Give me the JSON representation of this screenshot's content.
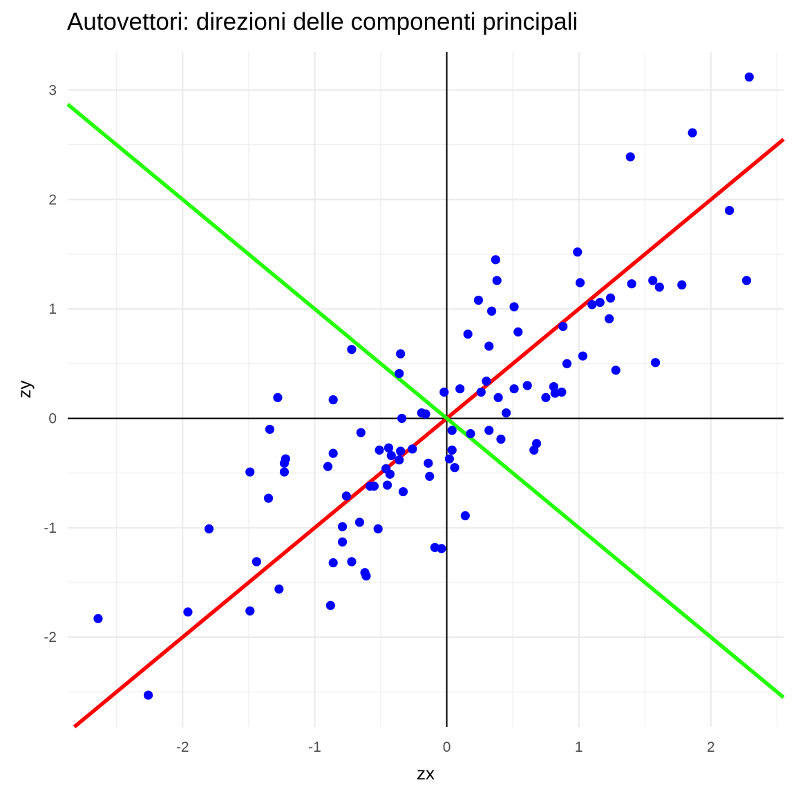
{
  "chart_data": {
    "type": "scatter",
    "title": "Autovettori: direzioni delle componenti principali",
    "xlabel": "zx",
    "ylabel": "zy",
    "xlim": [
      -2.87,
      2.55
    ],
    "ylim": [
      -2.82,
      3.35
    ],
    "xticks": [
      -2,
      -1,
      0,
      1,
      2
    ],
    "yticks": [
      -2,
      -1,
      0,
      1,
      2,
      3
    ],
    "xtick_labels": [
      "-2",
      "-1",
      "0",
      "1",
      "2"
    ],
    "ytick_labels": [
      "-2",
      "-1",
      "0",
      "1",
      "2",
      "3"
    ],
    "grid": true,
    "reference_lines": [
      {
        "orientation": "vertical",
        "value": 0,
        "color": "#000000"
      },
      {
        "orientation": "horizontal",
        "value": 0,
        "color": "#000000"
      }
    ],
    "direction_lines": [
      {
        "slope": 1,
        "intercept": 0,
        "color": "#ff0000"
      },
      {
        "slope": -1,
        "intercept": 0,
        "color": "#22ff00"
      }
    ],
    "point_color": "#0000ff",
    "points": [
      [
        2.29,
        3.12
      ],
      [
        1.86,
        2.61
      ],
      [
        1.39,
        2.39
      ],
      [
        2.14,
        1.9
      ],
      [
        2.27,
        1.26
      ],
      [
        1.78,
        1.22
      ],
      [
        1.56,
        1.26
      ],
      [
        1.61,
        1.2
      ],
      [
        1.4,
        1.23
      ],
      [
        0.99,
        1.52
      ],
      [
        1.01,
        1.24
      ],
      [
        1.58,
        0.51
      ],
      [
        1.28,
        0.44
      ],
      [
        1.24,
        1.1
      ],
      [
        1.23,
        0.91
      ],
      [
        1.16,
        1.06
      ],
      [
        1.1,
        1.04
      ],
      [
        1.03,
        0.57
      ],
      [
        0.91,
        0.5
      ],
      [
        0.88,
        0.84
      ],
      [
        0.87,
        0.24
      ],
      [
        0.82,
        0.23
      ],
      [
        0.81,
        0.29
      ],
      [
        0.75,
        0.19
      ],
      [
        0.61,
        0.3
      ],
      [
        0.37,
        1.45
      ],
      [
        0.38,
        1.26
      ],
      [
        0.51,
        1.02
      ],
      [
        0.34,
        0.98
      ],
      [
        0.24,
        1.08
      ],
      [
        0.54,
        0.79
      ],
      [
        0.16,
        0.77
      ],
      [
        0.32,
        0.66
      ],
      [
        0.51,
        0.27
      ],
      [
        0.3,
        0.34
      ],
      [
        0.26,
        0.24
      ],
      [
        0.39,
        0.19
      ],
      [
        0.45,
        0.05
      ],
      [
        0.1,
        0.27
      ],
      [
        -0.02,
        0.24
      ],
      [
        0.68,
        -0.23
      ],
      [
        0.66,
        -0.29
      ],
      [
        0.41,
        -0.19
      ],
      [
        0.32,
        -0.11
      ],
      [
        0.18,
        -0.14
      ],
      [
        0.04,
        -0.11
      ],
      [
        0.04,
        -0.29
      ],
      [
        0.02,
        -0.37
      ],
      [
        0.06,
        -0.45
      ],
      [
        0.14,
        -0.89
      ],
      [
        -0.72,
        0.63
      ],
      [
        -0.35,
        0.59
      ],
      [
        -0.36,
        0.41
      ],
      [
        -0.86,
        0.17
      ],
      [
        -1.28,
        0.19
      ],
      [
        -0.19,
        0.05
      ],
      [
        -0.16,
        0.04
      ],
      [
        -0.34,
        0.0
      ],
      [
        -1.34,
        -0.1
      ],
      [
        -0.65,
        -0.13
      ],
      [
        -0.86,
        -0.32
      ],
      [
        -1.22,
        -0.37
      ],
      [
        -1.23,
        -0.41
      ],
      [
        -1.23,
        -0.49
      ],
      [
        -0.9,
        -0.44
      ],
      [
        -1.49,
        -0.49
      ],
      [
        -0.51,
        -0.29
      ],
      [
        -0.44,
        -0.27
      ],
      [
        -0.42,
        -0.34
      ],
      [
        -0.35,
        -0.3
      ],
      [
        -0.26,
        -0.28
      ],
      [
        -0.36,
        -0.38
      ],
      [
        -0.14,
        -0.41
      ],
      [
        -0.46,
        -0.46
      ],
      [
        -0.43,
        -0.51
      ],
      [
        -0.13,
        -0.53
      ],
      [
        -0.55,
        -0.62
      ],
      [
        -0.58,
        -0.62
      ],
      [
        -0.45,
        -0.61
      ],
      [
        -0.33,
        -0.67
      ],
      [
        -0.76,
        -0.71
      ],
      [
        -1.35,
        -0.73
      ],
      [
        -0.66,
        -0.95
      ],
      [
        -0.79,
        -0.99
      ],
      [
        -0.52,
        -1.01
      ],
      [
        -1.8,
        -1.01
      ],
      [
        -0.79,
        -1.13
      ],
      [
        -0.09,
        -1.18
      ],
      [
        -0.04,
        -1.19
      ],
      [
        -0.72,
        -1.31
      ],
      [
        -0.86,
        -1.32
      ],
      [
        -1.44,
        -1.31
      ],
      [
        -0.62,
        -1.41
      ],
      [
        -0.61,
        -1.44
      ],
      [
        -1.27,
        -1.56
      ],
      [
        -0.88,
        -1.71
      ],
      [
        -1.49,
        -1.76
      ],
      [
        -1.96,
        -1.77
      ],
      [
        -2.64,
        -1.83
      ],
      [
        -2.26,
        -2.53
      ]
    ]
  }
}
